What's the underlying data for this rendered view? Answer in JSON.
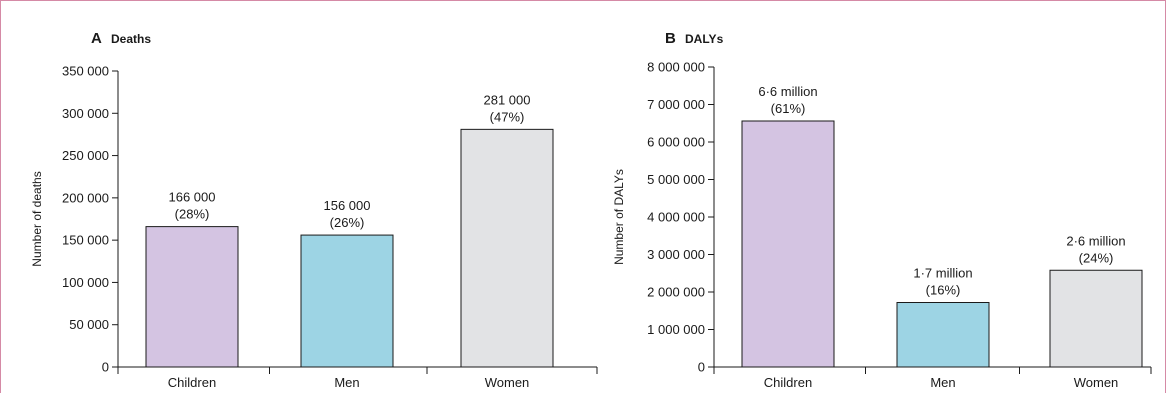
{
  "chart_data": [
    {
      "type": "bar",
      "panel_letter": "A",
      "title": "Deaths",
      "ylabel": "Number of deaths",
      "xlabel": "",
      "ylim": [
        0,
        350000
      ],
      "yticks": [
        0,
        50000,
        100000,
        150000,
        200000,
        250000,
        300000,
        350000
      ],
      "ytick_labels": [
        "0",
        "50 000",
        "100 000",
        "150 000",
        "200 000",
        "250 000",
        "300 000",
        "350 000"
      ],
      "categories": [
        "Children",
        "Men",
        "Women"
      ],
      "values": [
        166000,
        156000,
        281000
      ],
      "value_labels": [
        "166 000",
        "156 000",
        "281 000"
      ],
      "percent_labels": [
        "(28%)",
        "(26%)",
        "(47%)"
      ],
      "colors": [
        "#d4c4e2",
        "#9dd4e4",
        "#e2e3e5"
      ],
      "grid": false
    },
    {
      "type": "bar",
      "panel_letter": "B",
      "title": "DALYs",
      "ylabel": "Number of DALYs",
      "xlabel": "",
      "ylim": [
        0,
        8000000
      ],
      "yticks": [
        0,
        1000000,
        2000000,
        3000000,
        4000000,
        5000000,
        6000000,
        7000000,
        8000000
      ],
      "ytick_labels": [
        "0",
        "1 000 000",
        "2 000 000",
        "3 000 000",
        "4 000 000",
        "5 000 000",
        "6 000 000",
        "7 000 000",
        "8 000 000"
      ],
      "categories": [
        "Children",
        "Men",
        "Women"
      ],
      "values": [
        6560000,
        1720000,
        2580000
      ],
      "value_labels": [
        "6·6 million",
        "1·7 million",
        "2·6 million"
      ],
      "percent_labels": [
        "(61%)",
        "(16%)",
        "(24%)"
      ],
      "colors": [
        "#d4c4e2",
        "#9dd4e4",
        "#e2e3e5"
      ],
      "grid": false
    }
  ]
}
